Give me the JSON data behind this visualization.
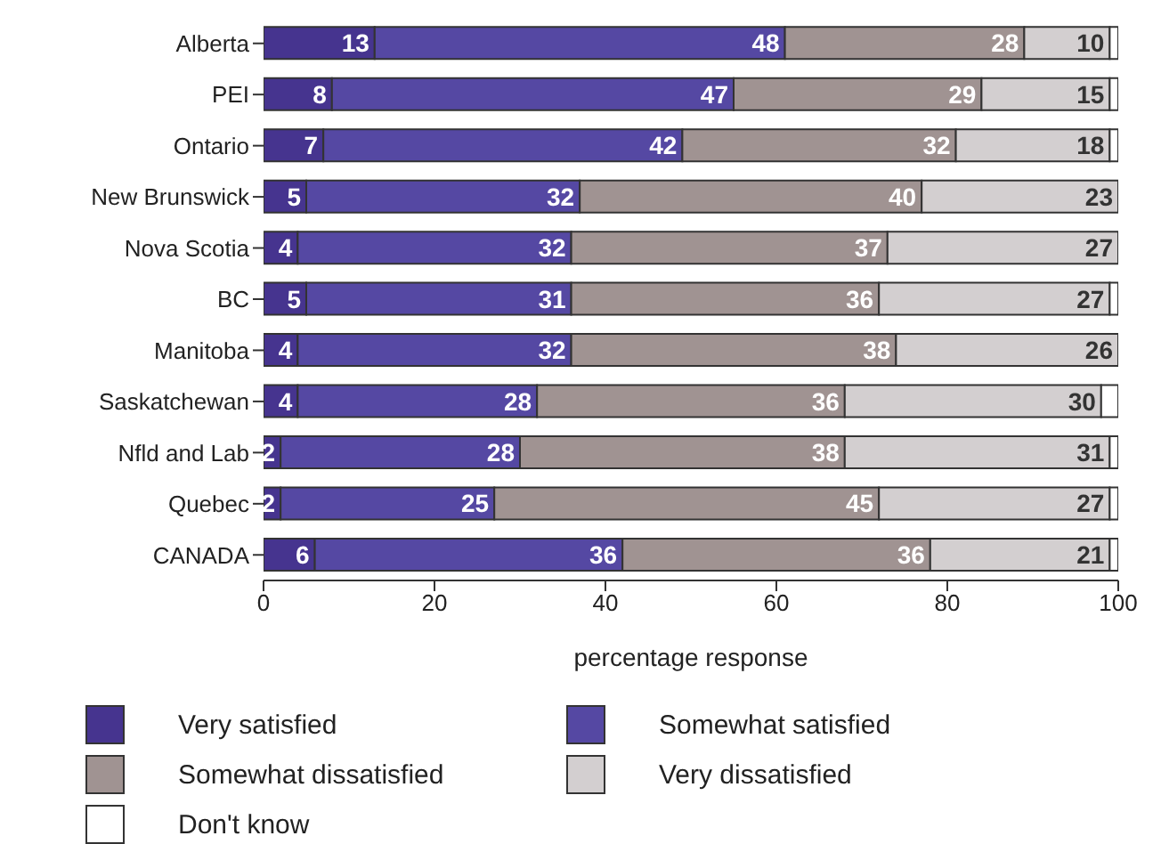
{
  "chart_data": {
    "type": "bar",
    "orientation": "horizontal",
    "stacked": true,
    "xlabel": "percentage response",
    "categories": [
      "Alberta",
      "PEI",
      "Ontario",
      "New Brunswick",
      "Nova Scotia",
      "BC",
      "Manitoba",
      "Saskatchewan",
      "Nfld and Lab",
      "Quebec",
      "CANADA"
    ],
    "series": [
      {
        "name": "Very satisfied",
        "color": "#46348f",
        "values": [
          13,
          8,
          7,
          5,
          4,
          5,
          4,
          4,
          2,
          2,
          6
        ],
        "value_labels": [
          "13",
          "8",
          "7",
          "5",
          "4",
          "5",
          "4",
          "4",
          "2",
          "2",
          "6"
        ]
      },
      {
        "name": "Somewhat satisfied",
        "color": "#5548a3",
        "values": [
          48,
          47,
          42,
          32,
          32,
          31,
          32,
          28,
          28,
          25,
          36
        ],
        "value_labels": [
          "48",
          "47",
          "42",
          "32",
          "32",
          "31",
          "32",
          "28",
          "28",
          "25",
          "36"
        ]
      },
      {
        "name": "Somewhat dissatisfied",
        "color": "#a09392",
        "values": [
          28,
          29,
          32,
          40,
          37,
          36,
          38,
          36,
          38,
          45,
          36
        ],
        "value_labels": [
          "28",
          "29",
          "32",
          "40",
          "37",
          "36",
          "38",
          "36",
          "38",
          "45",
          "36"
        ]
      },
      {
        "name": "Very dissatisfied",
        "color": "#d3cfd0",
        "values": [
          10,
          15,
          18,
          23,
          27,
          27,
          26,
          30,
          31,
          27,
          21
        ],
        "value_labels": [
          "10",
          "15",
          "18",
          "23",
          "27",
          "27",
          "26",
          "30",
          "31",
          "27",
          "21"
        ]
      },
      {
        "name": "Don't know",
        "color": "#ffffff",
        "values": [
          1,
          1,
          1,
          0,
          0,
          1,
          0,
          2,
          1,
          1,
          1
        ]
      }
    ],
    "xlim": [
      0,
      100
    ],
    "xticks": [
      0,
      20,
      40,
      60,
      80,
      100
    ],
    "grid": false,
    "legend": "bottom"
  }
}
